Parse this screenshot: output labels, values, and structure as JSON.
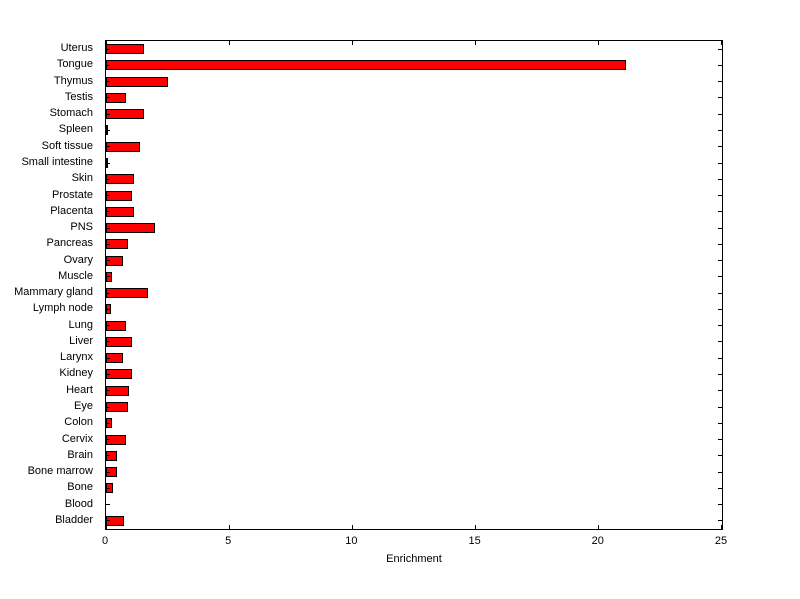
{
  "chart_data": {
    "type": "bar",
    "orientation": "horizontal",
    "title": "",
    "xlabel": "Enrichment",
    "ylabel": "",
    "xlim": [
      0,
      25
    ],
    "x_ticks": [
      0,
      5,
      10,
      15,
      20,
      25
    ],
    "grid": false,
    "legend": false,
    "bar_color": "#ff0000",
    "bar_edge_color": "#000000",
    "background_color": "#ffffff",
    "categories": [
      "Uterus",
      "Tongue",
      "Thymus",
      "Testis",
      "Stomach",
      "Spleen",
      "Soft tissue",
      "Small intestine",
      "Skin",
      "Prostate",
      "Placenta",
      "PNS",
      "Pancreas",
      "Ovary",
      "Muscle",
      "Mammary gland",
      "Lymph node",
      "Lung",
      "Liver",
      "Larynx",
      "Kidney",
      "Heart",
      "Eye",
      "Colon",
      "Cervix",
      "Brain",
      "Bone marrow",
      "Bone",
      "Blood",
      "Bladder"
    ],
    "values": [
      1.55,
      21.1,
      2.5,
      0.8,
      1.55,
      0.05,
      1.4,
      0.05,
      1.15,
      1.05,
      1.15,
      2.0,
      0.9,
      0.7,
      0.25,
      1.7,
      0.2,
      0.8,
      1.05,
      0.7,
      1.05,
      0.95,
      0.9,
      0.25,
      0.8,
      0.45,
      0.45,
      0.3,
      0.0,
      0.75
    ]
  }
}
